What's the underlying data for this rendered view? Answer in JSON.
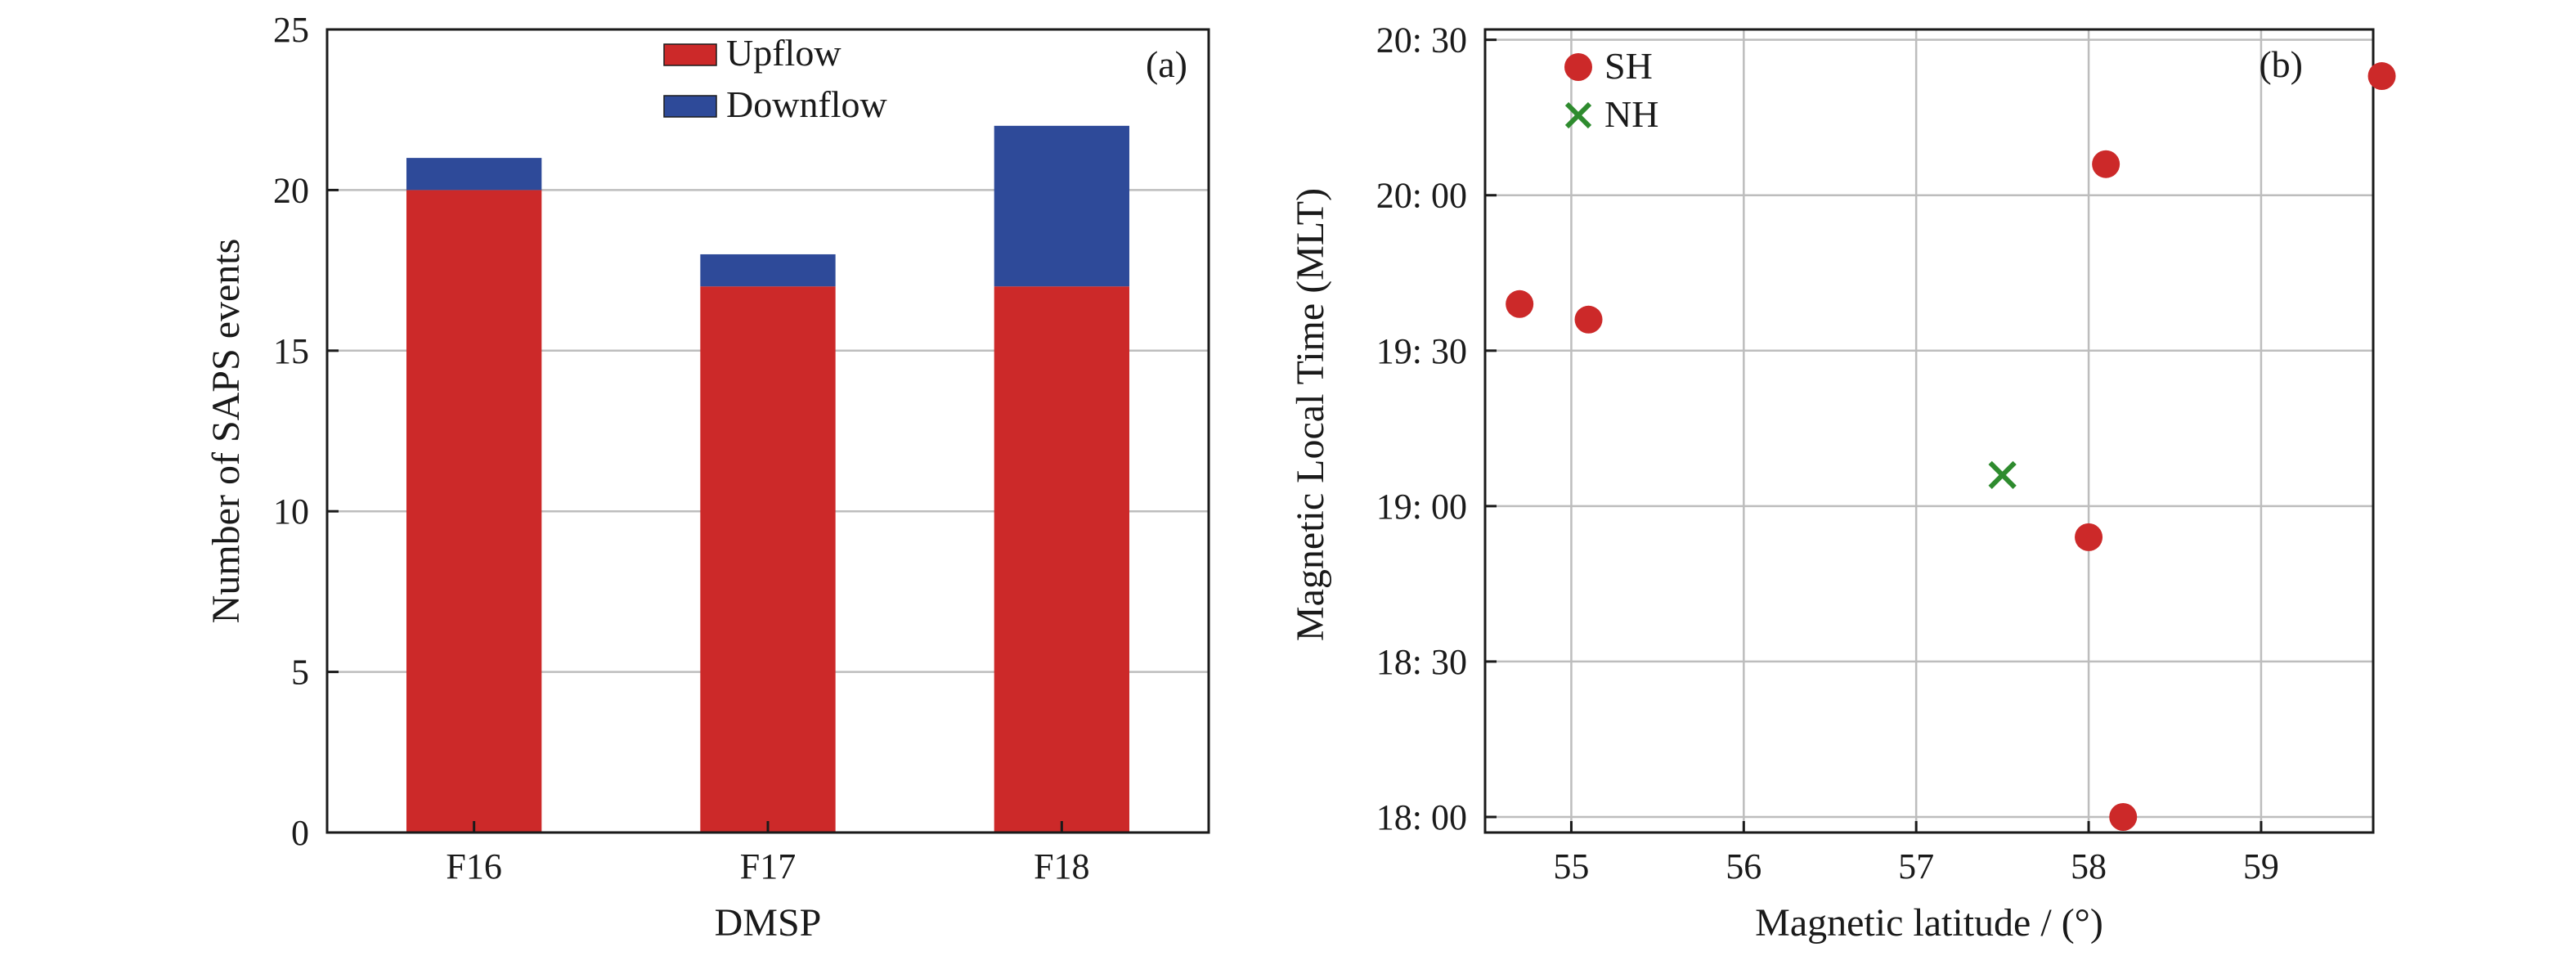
{
  "colors": {
    "upflow": "#cc2929",
    "downflow": "#2e4a99",
    "sh": "#cc2929",
    "nh": "#2e8b2e",
    "grid": "#bdbdbd",
    "axis": "#1a1a1a"
  },
  "chart_data": [
    {
      "type": "bar",
      "stacked": true,
      "panel_tag": "(a)",
      "xlabel": "DMSP",
      "ylabel": "Number of SAPS events",
      "categories": [
        "F16",
        "F17",
        "F18"
      ],
      "series": [
        {
          "name": "Upflow",
          "values": [
            20,
            17,
            17
          ]
        },
        {
          "name": "Downflow",
          "values": [
            1,
            1,
            5
          ]
        }
      ],
      "ylim": [
        0,
        25
      ],
      "yticks": [
        0,
        5,
        10,
        15,
        20,
        25
      ],
      "grid": "horizontal",
      "legend_position": "top-center"
    },
    {
      "type": "scatter",
      "panel_tag": "(b)",
      "xlabel": "Magnetic latitude / (°)",
      "ylabel": "Magnetic Local Time (MLT)",
      "xlim": [
        54.5,
        59.65
      ],
      "ylim": [
        "17:57",
        "20:32"
      ],
      "xticks": [
        55,
        56,
        57,
        58,
        59
      ],
      "yticks": [
        "18: 00",
        "18: 30",
        "19: 00",
        "19: 30",
        "20: 00",
        "20: 30"
      ],
      "grid": "both",
      "legend_position": "top-left",
      "series": [
        {
          "name": "SH",
          "marker": "circle",
          "points": [
            {
              "x": 54.7,
              "y": "19:39"
            },
            {
              "x": 55.1,
              "y": "19:36"
            },
            {
              "x": 58.1,
              "y": "20:06"
            },
            {
              "x": 59.7,
              "y": "20:23"
            },
            {
              "x": 58.0,
              "y": "18:54"
            },
            {
              "x": 58.2,
              "y": "18:00"
            }
          ]
        },
        {
          "name": "NH",
          "marker": "x",
          "points": [
            {
              "x": 57.5,
              "y": "19:06"
            }
          ]
        }
      ]
    }
  ]
}
